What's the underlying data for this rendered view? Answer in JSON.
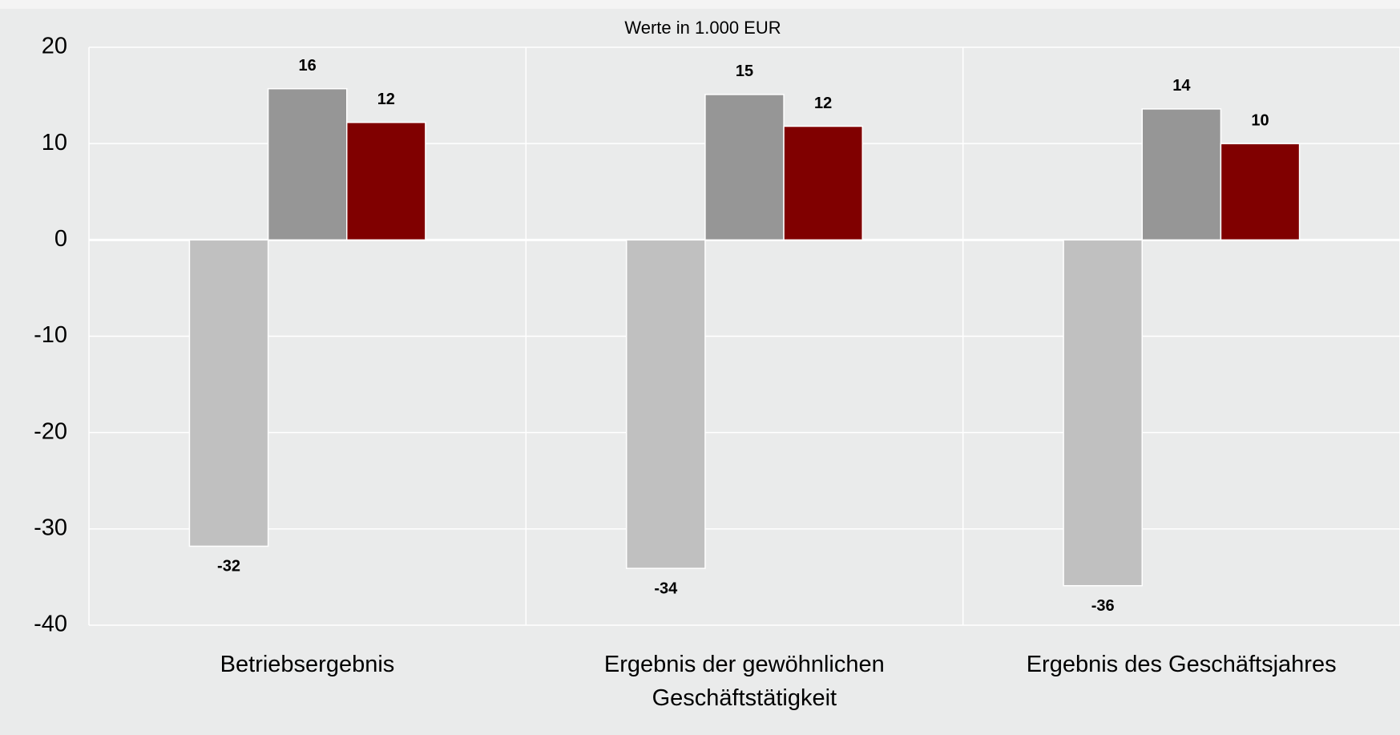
{
  "chart_data": {
    "type": "bar",
    "title": "Werte in 1.000 EUR",
    "categories": [
      "Betriebsergebnis",
      "Ergebnis der gewöhnlichen\nGeschäftstätigkeit",
      "Ergebnis des Geschäftsjahres"
    ],
    "series": [
      {
        "color": "#c0c0c0",
        "values": [
          -31.8,
          -34.1,
          -35.9
        ],
        "value_labels": [
          "-32",
          "-34",
          "-36"
        ]
      },
      {
        "color": "#969696",
        "values": [
          15.7,
          15.1,
          13.6
        ],
        "value_labels": [
          "16",
          "15",
          "14"
        ]
      },
      {
        "color": "#800000",
        "values": [
          12.2,
          11.8,
          10.0
        ],
        "value_labels": [
          "12",
          "12",
          "10"
        ]
      }
    ],
    "ylim": [
      -40,
      20
    ],
    "yticks": [
      -40,
      -30,
      -20,
      -10,
      0,
      10,
      20
    ],
    "grid": true
  }
}
